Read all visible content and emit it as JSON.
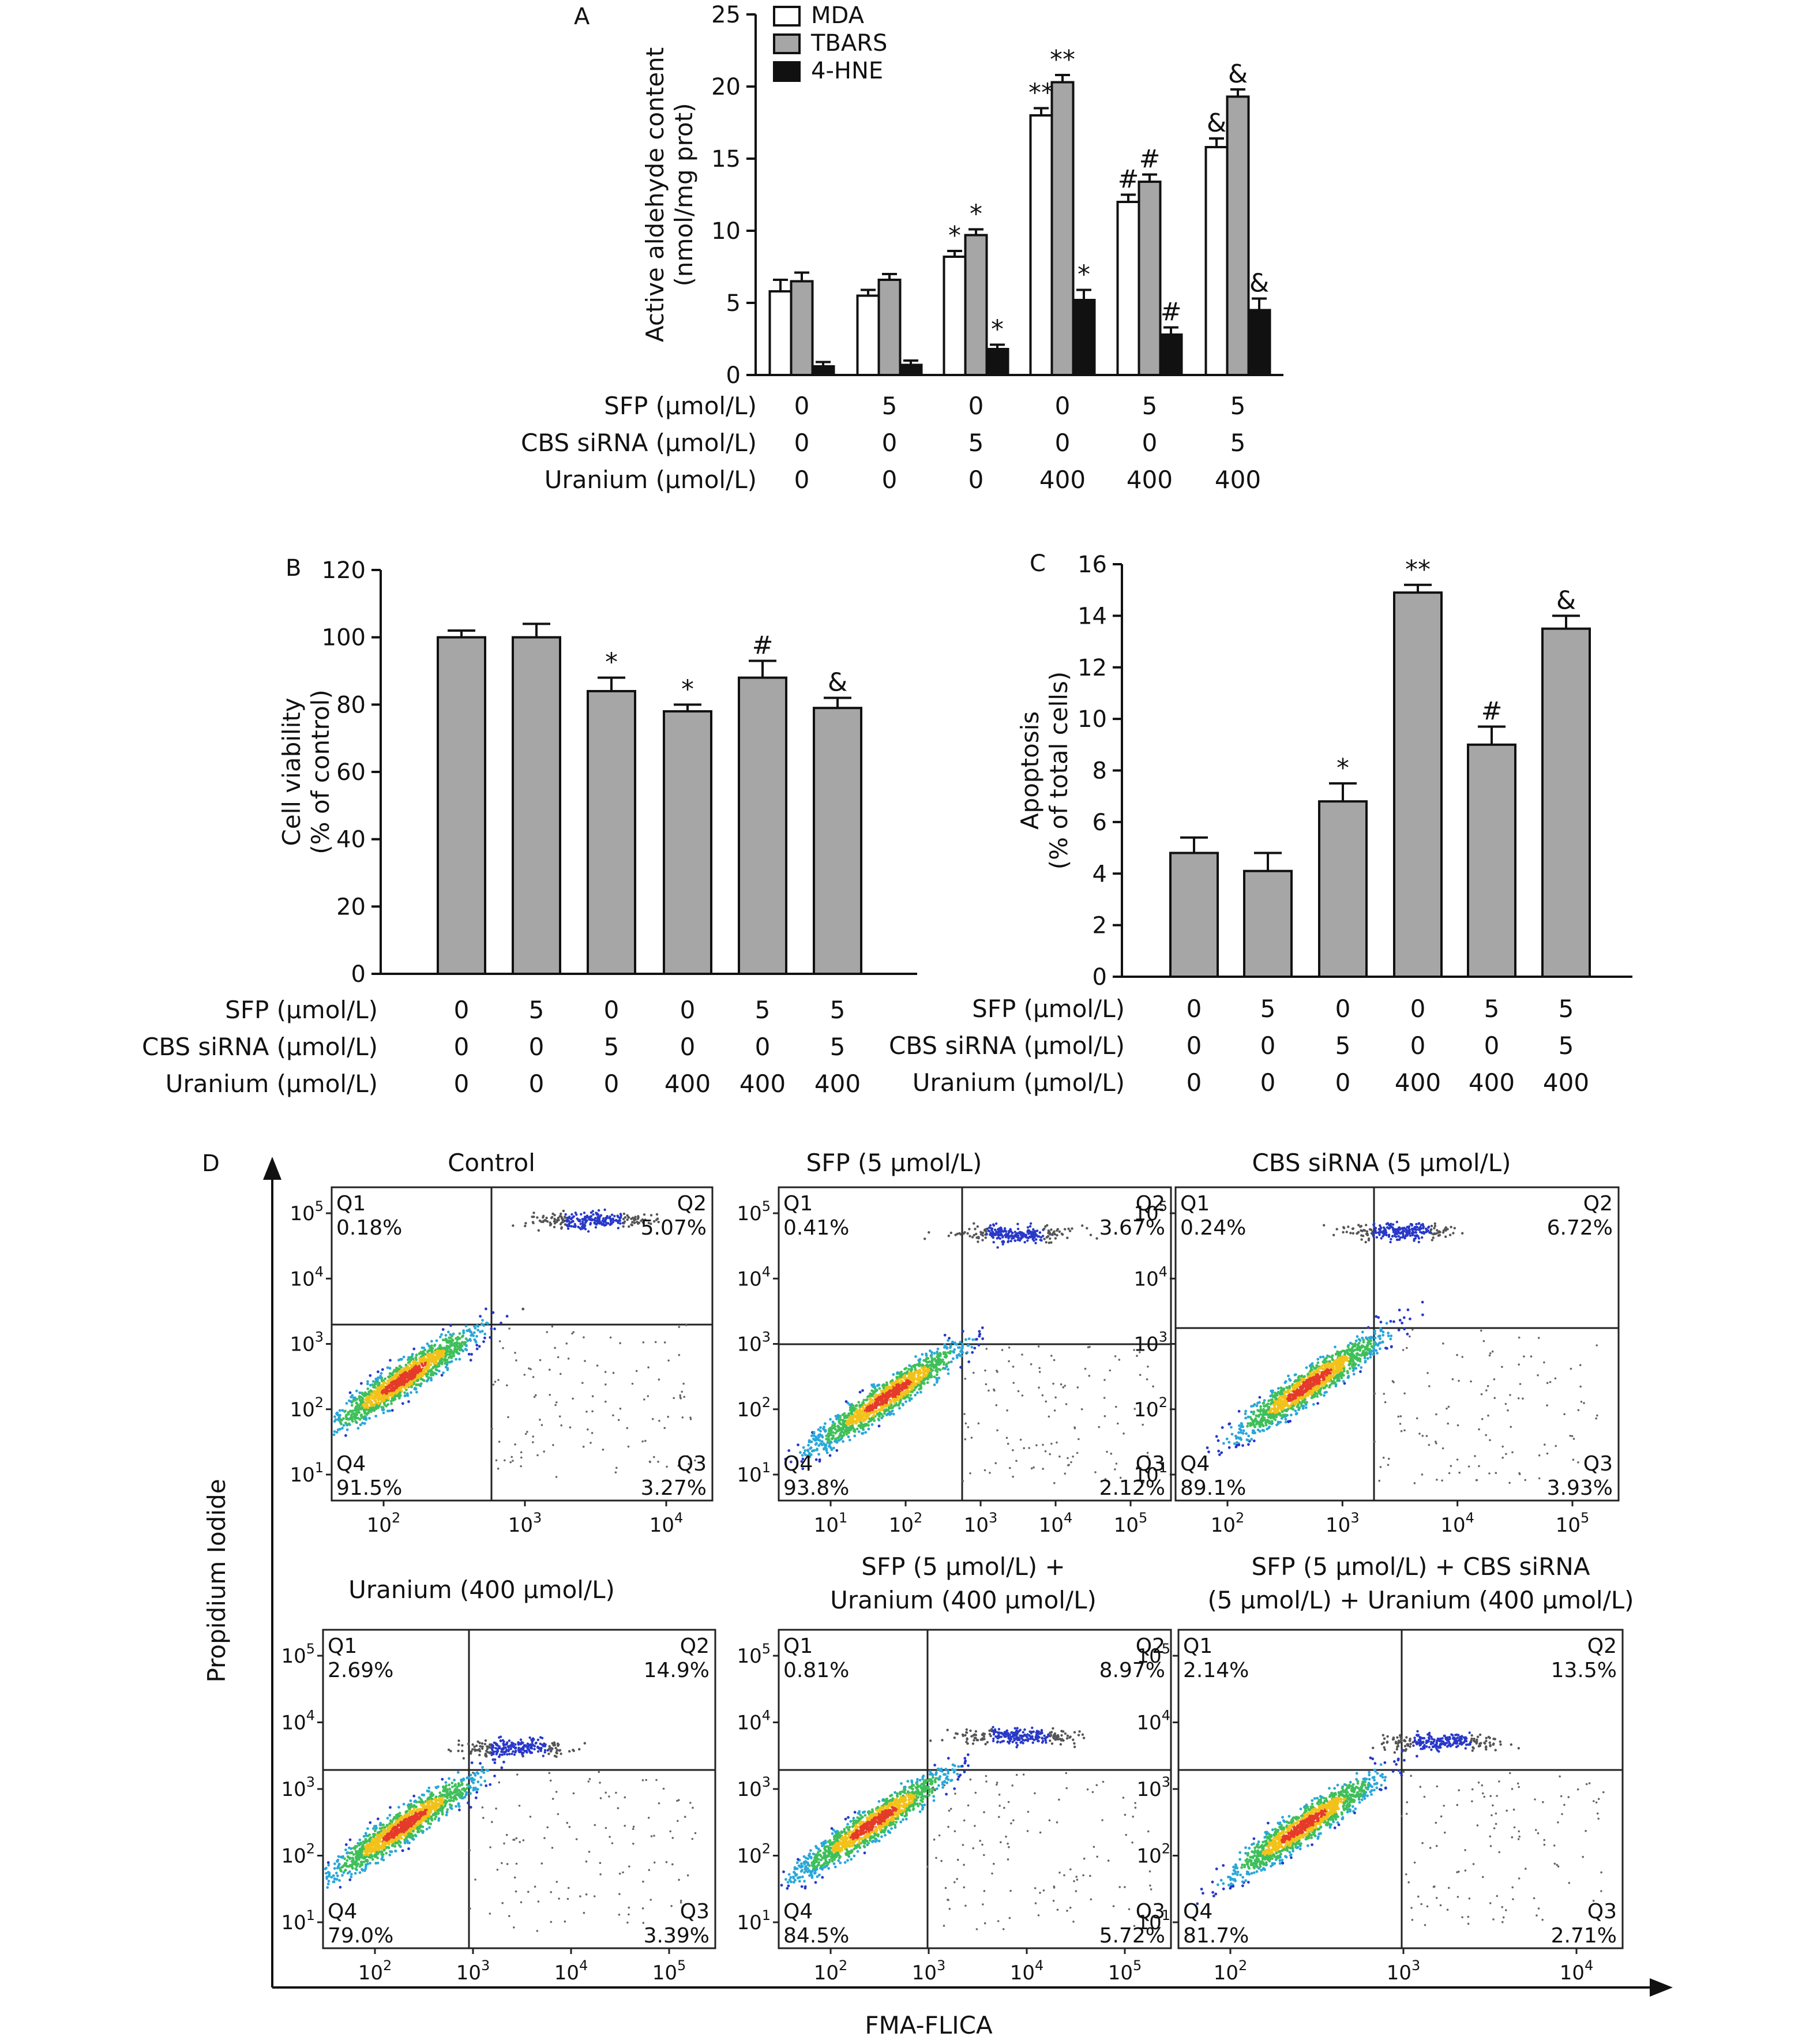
{
  "treatment_rows": [
    {
      "label": "SFP (μmol/L)",
      "values": [
        "0",
        "5",
        "0",
        "0",
        "5",
        "5"
      ]
    },
    {
      "label": "CBS siRNA (μmol/L)",
      "values": [
        "0",
        "0",
        "5",
        "0",
        "0",
        "5"
      ]
    },
    {
      "label": "Uranium (μmol/L)",
      "values": [
        "0",
        "0",
        "0",
        "400",
        "400",
        "400"
      ]
    }
  ],
  "colors": {
    "white": "#ffffff",
    "gray": "#a6a6a6",
    "black": "#111111"
  },
  "chart_data": [
    {
      "panel": "A",
      "type": "bar",
      "ylabel_lines": [
        "Active aldehyde content",
        "(nmol/mg prot)"
      ],
      "ylim": [
        0,
        25
      ],
      "yticks": [
        0,
        5,
        10,
        15,
        20,
        25
      ],
      "legend_position": "top-left",
      "series": [
        {
          "name": "MDA",
          "color": "#ffffff",
          "values": [
            5.8,
            5.5,
            8.2,
            18.0,
            12.0,
            15.8
          ],
          "errors": [
            0.8,
            0.4,
            0.4,
            0.5,
            0.5,
            0.6
          ],
          "marks": [
            "",
            "",
            "*",
            "**",
            "#",
            "&"
          ]
        },
        {
          "name": "TBARS",
          "color": "#a6a6a6",
          "values": [
            6.5,
            6.6,
            9.7,
            20.3,
            13.4,
            19.3
          ],
          "errors": [
            0.6,
            0.4,
            0.4,
            0.5,
            0.5,
            0.5
          ],
          "marks": [
            "",
            "",
            "*",
            "**",
            "#",
            "&"
          ]
        },
        {
          "name": "4-HNE",
          "color": "#111111",
          "values": [
            0.6,
            0.7,
            1.8,
            5.2,
            2.8,
            4.5
          ],
          "errors": [
            0.3,
            0.3,
            0.3,
            0.7,
            0.5,
            0.8
          ],
          "marks": [
            "",
            "",
            "*",
            "*",
            "#",
            "&"
          ]
        }
      ]
    },
    {
      "panel": "B",
      "type": "bar",
      "ylabel_lines": [
        "Cell viability",
        "(% of control)"
      ],
      "ylim": [
        0,
        120
      ],
      "yticks": [
        0,
        20,
        40,
        60,
        80,
        100,
        120
      ],
      "series": [
        {
          "name": "",
          "color": "#a6a6a6",
          "values": [
            100,
            100,
            84,
            78,
            88,
            79
          ],
          "errors": [
            2,
            4,
            4,
            2,
            5,
            3
          ],
          "marks": [
            "",
            "",
            "*",
            "*",
            "#",
            "&"
          ]
        }
      ]
    },
    {
      "panel": "C",
      "type": "bar",
      "ylabel_lines": [
        "Apoptosis",
        "(% of total cells)"
      ],
      "ylim": [
        0,
        16
      ],
      "yticks": [
        0,
        2,
        4,
        6,
        8,
        10,
        12,
        14,
        16
      ],
      "series": [
        {
          "name": "",
          "color": "#a6a6a6",
          "values": [
            4.8,
            4.1,
            6.8,
            14.9,
            9.0,
            13.5
          ],
          "errors": [
            0.6,
            0.7,
            0.7,
            0.3,
            0.7,
            0.5
          ],
          "marks": [
            "",
            "",
            "*",
            "**",
            "#",
            "&"
          ]
        }
      ]
    },
    {
      "panel": "D",
      "type": "scatter",
      "xlabel": "FMA-FLICA",
      "ylabel": "Propidium Iodide",
      "plots": [
        {
          "title_lines": [
            "Control"
          ],
          "q1": "0.18%",
          "q2": "5.07%",
          "q3": "3.27%",
          "q4": "91.5%",
          "xticks": [
            "2",
            "3",
            "4"
          ],
          "yticks": [
            "1",
            "2",
            "3",
            "4",
            "5"
          ]
        },
        {
          "title_lines": [
            "SFP (5 μmol/L)"
          ],
          "q1": "0.41%",
          "q2": "3.67%",
          "q3": "2.12%",
          "q4": "93.8%",
          "xticks": [
            "1",
            "2",
            "3",
            "4",
            "5"
          ],
          "yticks": [
            "1",
            "2",
            "3",
            "4",
            "5"
          ]
        },
        {
          "title_lines": [
            "CBS siRNA (5 μmol/L)"
          ],
          "q1": "0.24%",
          "q2": "6.72%",
          "q3": "3.93%",
          "q4": "89.1%",
          "xticks": [
            "2",
            "3",
            "4",
            "5"
          ],
          "yticks": [
            "1",
            "2",
            "3",
            "4",
            "5"
          ]
        },
        {
          "title_lines": [
            "Uranium (400 μmol/L)"
          ],
          "q1": "2.69%",
          "q2": "14.9%",
          "q3": "3.39%",
          "q4": "79.0%",
          "xticks": [
            "2",
            "3",
            "4",
            "5"
          ],
          "yticks": [
            "1",
            "2",
            "3",
            "4",
            "5"
          ]
        },
        {
          "title_lines": [
            "SFP (5 μmol/L) +",
            "Uranium (400 μmol/L)"
          ],
          "q1": "0.81%",
          "q2": "8.97%",
          "q3": "5.72%",
          "q4": "84.5%",
          "xticks": [
            "2",
            "3",
            "4",
            "5"
          ],
          "yticks": [
            "1",
            "2",
            "3",
            "4",
            "5"
          ]
        },
        {
          "title_lines": [
            "SFP (5 μmol/L) + CBS siRNA",
            "(5 μmol/L) + Uranium (400 μmol/L)"
          ],
          "q1": "2.14%",
          "q2": "13.5%",
          "q3": "2.71%",
          "q4": "81.7%",
          "xticks": [
            "2",
            "3",
            "4"
          ],
          "yticks": [
            "1",
            "2",
            "3",
            "4",
            "5"
          ]
        }
      ]
    }
  ]
}
